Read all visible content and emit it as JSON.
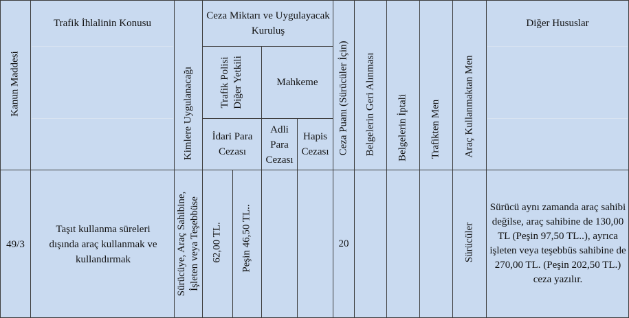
{
  "headers": {
    "kanun_maddesi": "Kanun Maddesi",
    "trafik_ihlali_konusu": "Trafik İhlalinin Konusu",
    "kimlere_uygulanacagi": "Kimlere Uygulanacağı",
    "ceza_miktari": "Ceza Miktarı ve Uygulayacak Kuruluş",
    "trafik_polisi": "Trafik Polisi Diğer Yetkili",
    "mahkeme": "Mahkeme",
    "idari_para_cezasi": "İdari Para Cezası",
    "adli_para_cezasi": "Adli Para Cezası",
    "hapis_cezasi": "Hapis Cezası",
    "ceza_puani": "Ceza Puanı (Sürücüler İçin)",
    "belgelerin_geri_alinmasi": "Belgelerin Geri Alınması",
    "belgelerin_iptali": "Belgelerin İptali",
    "trafikten_men": "Trafikten Men",
    "arac_kullanmaktan_men": "Araç Kullanmaktan Men",
    "diger_hususlar": "Diğer Hususlar"
  },
  "row": {
    "madde": "49/3",
    "konu": "Taşıt kullanma süreleri dışında araç kullanmak ve kullandırmak",
    "kimlere_line1": "Sürücüye, Araç Sahibine,",
    "kimlere_line2": "İşleten veya Teşebbüse",
    "idari_tutar": "62,00 TL.",
    "pesin": "Peşin 46,50 TL..",
    "adli_para": "",
    "hapis": "",
    "ceza_puani": "20",
    "geri_alinma": "",
    "iptal": "",
    "trafikten_men": "",
    "arac_kullanmaktan_men": "Sürücüler",
    "diger": "Sürücü aynı zamanda araç sahibi değilse, araç sahibine de 130,00 TL (Peşin 97,50 TL..), ayrıca işleten veya teşebbüs sahibine de 270,00 TL. (Peşin 202,50 TL.) ceza yazılır."
  }
}
